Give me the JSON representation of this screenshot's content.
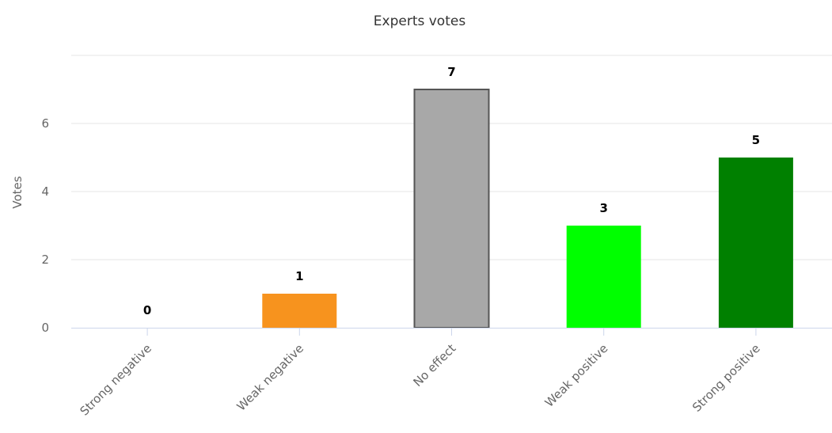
{
  "chart_data": {
    "type": "bar",
    "title": "Experts votes",
    "xlabel": "",
    "ylabel": "Votes",
    "categories": [
      "Strong negative",
      "Weak negative",
      "No effect",
      "Weak positive",
      "Strong positive"
    ],
    "values": [
      0,
      1,
      7,
      3,
      5
    ],
    "colors": [
      "#c00000",
      "#f7931e",
      "#a8a8a8",
      "#00ff00",
      "#008000"
    ],
    "bar_borders": [
      "none",
      "none",
      "#555555",
      "none",
      "none"
    ],
    "yticks": [
      0,
      2,
      4,
      6
    ],
    "ylim": [
      0,
      8
    ],
    "grid": true,
    "legend": "none"
  }
}
